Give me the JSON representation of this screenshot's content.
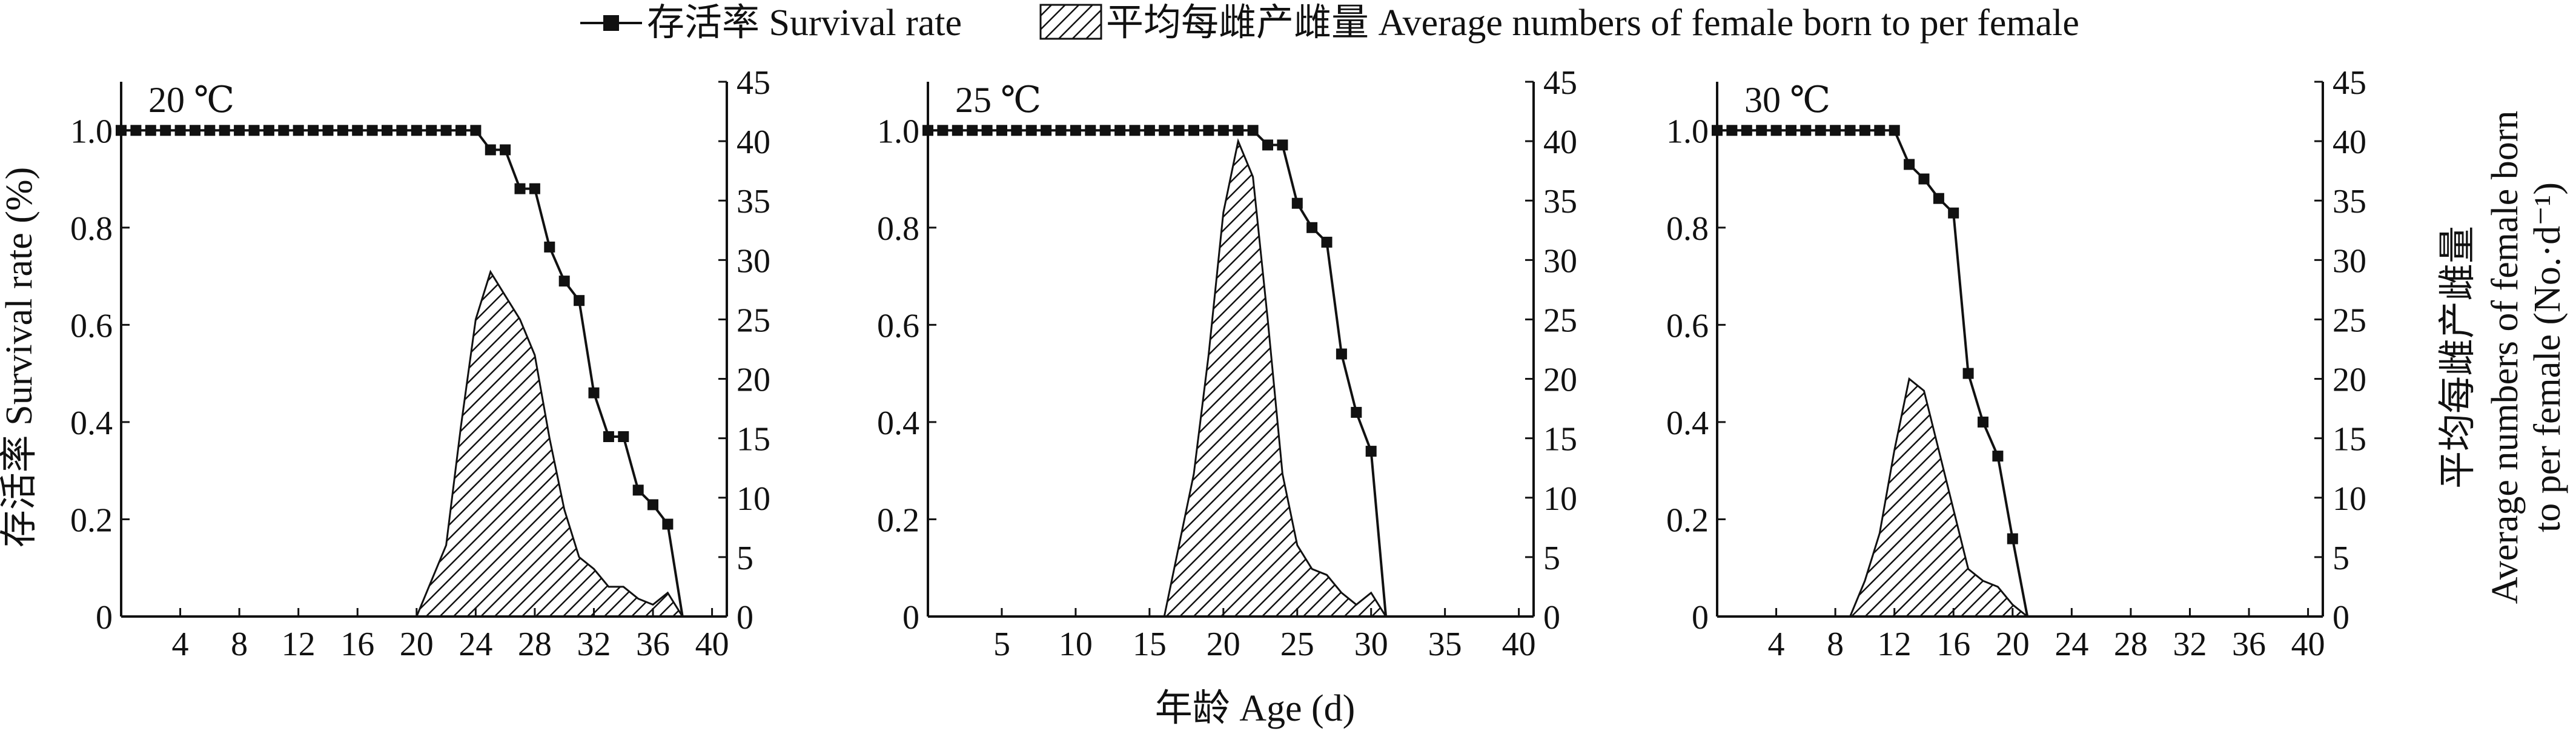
{
  "legend": {
    "survival": "存活率 Survival rate",
    "fecundity": "平均每雌产雌量 Average numbers of female born to per female"
  },
  "xlabel": "年龄 Age (d)",
  "ylabel_left": "存活率 Survival rate (%)",
  "ylabel_right_cn": "平均每雌产雌量",
  "ylabel_right_en_1": "Average numbers of female born",
  "ylabel_right_en_2": "to per female (No.·d⁻¹)",
  "colors": {
    "line": "#111111",
    "hatch": "#111111",
    "background": "#ffffff"
  },
  "chart_data": [
    {
      "type": "line",
      "title": "20 ℃",
      "xlim": [
        0,
        41
      ],
      "xticks": [
        4,
        8,
        12,
        16,
        20,
        24,
        28,
        32,
        36,
        40
      ],
      "ylim_left": [
        0,
        1.1
      ],
      "yticks_left": [
        0,
        0.2,
        0.4,
        0.6,
        0.8,
        1.0
      ],
      "ylim_right": [
        0,
        45
      ],
      "yticks_right": [
        0,
        5,
        10,
        15,
        20,
        25,
        30,
        35,
        40,
        45
      ],
      "series": [
        {
          "name": "存活率 Survival rate",
          "axis": "left",
          "marker": "square",
          "x": [
            0,
            1,
            2,
            3,
            4,
            5,
            6,
            7,
            8,
            9,
            10,
            11,
            12,
            13,
            14,
            15,
            16,
            17,
            18,
            19,
            20,
            21,
            22,
            23,
            24,
            25,
            26,
            27,
            28,
            29,
            30,
            31,
            32,
            33,
            34,
            35,
            36,
            37,
            38
          ],
          "y": [
            1,
            1,
            1,
            1,
            1,
            1,
            1,
            1,
            1,
            1,
            1,
            1,
            1,
            1,
            1,
            1,
            1,
            1,
            1,
            1,
            1,
            1,
            1,
            1,
            1,
            0.96,
            0.96,
            0.88,
            0.88,
            0.76,
            0.69,
            0.65,
            0.46,
            0.37,
            0.37,
            0.26,
            0.23,
            0.19,
            0
          ]
        },
        {
          "name": "平均每雌产雌量 Average numbers of female born to per female",
          "axis": "right",
          "fill": "hatch",
          "x": [
            20,
            21,
            22,
            23,
            24,
            25,
            26,
            27,
            28,
            29,
            30,
            31,
            32,
            33,
            34,
            35,
            36,
            37,
            38
          ],
          "y": [
            0,
            3,
            6,
            16,
            25,
            29,
            27,
            25,
            22,
            15,
            9,
            5,
            4,
            2.5,
            2.5,
            1.5,
            1,
            2,
            0
          ]
        }
      ]
    },
    {
      "type": "line",
      "title": "25 ℃",
      "xlim": [
        0,
        41
      ],
      "xticks": [
        5,
        10,
        15,
        20,
        25,
        30,
        35,
        40
      ],
      "ylim_left": [
        0,
        1.1
      ],
      "yticks_left": [
        0,
        0.2,
        0.4,
        0.6,
        0.8,
        1.0
      ],
      "ylim_right": [
        0,
        45
      ],
      "yticks_right": [
        0,
        5,
        10,
        15,
        20,
        25,
        30,
        35,
        40,
        45
      ],
      "series": [
        {
          "name": "存活率 Survival rate",
          "axis": "left",
          "marker": "square",
          "x": [
            0,
            1,
            2,
            3,
            4,
            5,
            6,
            7,
            8,
            9,
            10,
            11,
            12,
            13,
            14,
            15,
            16,
            17,
            18,
            19,
            20,
            21,
            22,
            23,
            24,
            25,
            26,
            27,
            28,
            29,
            30,
            31
          ],
          "y": [
            1,
            1,
            1,
            1,
            1,
            1,
            1,
            1,
            1,
            1,
            1,
            1,
            1,
            1,
            1,
            1,
            1,
            1,
            1,
            1,
            1,
            1,
            1,
            0.97,
            0.97,
            0.85,
            0.8,
            0.77,
            0.54,
            0.42,
            0.34,
            0
          ]
        },
        {
          "name": "平均每雌产雌量 Average numbers of female born to per female",
          "axis": "right",
          "fill": "hatch",
          "x": [
            16,
            17,
            18,
            19,
            20,
            21,
            22,
            23,
            24,
            25,
            26,
            27,
            28,
            29,
            30,
            31,
            32
          ],
          "y": [
            0,
            6,
            12,
            22,
            34,
            40,
            37,
            25,
            12,
            6,
            4,
            3.5,
            2,
            1,
            2,
            0,
            0
          ]
        }
      ]
    },
    {
      "type": "line",
      "title": "30 ℃",
      "xlim": [
        0,
        41
      ],
      "xticks": [
        4,
        8,
        12,
        16,
        20,
        24,
        28,
        32,
        36,
        40
      ],
      "ylim_left": [
        0,
        1.1
      ],
      "yticks_left": [
        0,
        0.2,
        0.4,
        0.6,
        0.8,
        1.0
      ],
      "ylim_right": [
        0,
        45
      ],
      "yticks_right": [
        0,
        5,
        10,
        15,
        20,
        25,
        30,
        35,
        40,
        45
      ],
      "series": [
        {
          "name": "存活率 Survival rate",
          "axis": "left",
          "marker": "square",
          "x": [
            0,
            1,
            2,
            3,
            4,
            5,
            6,
            7,
            8,
            9,
            10,
            11,
            12,
            13,
            14,
            15,
            16,
            17,
            18,
            19,
            20,
            21
          ],
          "y": [
            1,
            1,
            1,
            1,
            1,
            1,
            1,
            1,
            1,
            1,
            1,
            1,
            1,
            0.93,
            0.9,
            0.86,
            0.83,
            0.5,
            0.4,
            0.33,
            0.16,
            0
          ]
        },
        {
          "name": "平均每雌产雌量 Average numbers of female born to per female",
          "axis": "right",
          "fill": "hatch",
          "x": [
            9,
            10,
            11,
            12,
            13,
            14,
            15,
            16,
            17,
            18,
            19,
            20,
            21,
            22
          ],
          "y": [
            0,
            3,
            7,
            14,
            20,
            19,
            14,
            9,
            4,
            3,
            2.5,
            1,
            0,
            0
          ]
        }
      ]
    }
  ]
}
